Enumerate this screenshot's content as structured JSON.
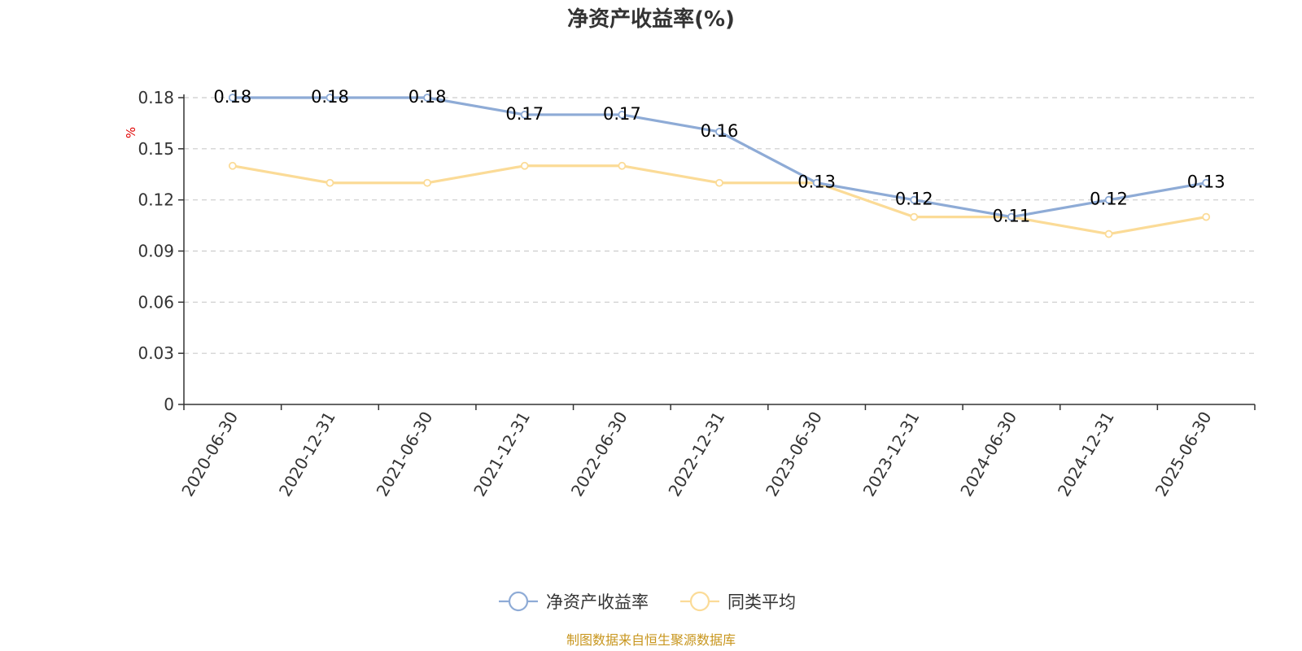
{
  "colors": {
    "series_main": "#8eabd6",
    "series_avg": "#fbdb97",
    "axis": "#333333",
    "grid": "#cccccc",
    "unit": "#e00000",
    "source": "#c8961e"
  },
  "chart_data": {
    "type": "line",
    "title": "净资产收益率(%)",
    "ylabel": "%",
    "ylim": [
      0,
      0.18
    ],
    "yticks": [
      "0",
      "0.03",
      "0.06",
      "0.09",
      "0.12",
      "0.15",
      "0.18"
    ],
    "grid": true,
    "legend_position": "bottom-center",
    "categories": [
      "2020-06-30",
      "2020-12-31",
      "2021-06-30",
      "2021-12-31",
      "2022-06-30",
      "2022-12-31",
      "2023-06-30",
      "2023-12-31",
      "2024-06-30",
      "2024-12-31",
      "2025-06-30"
    ],
    "series": [
      {
        "name": "净资产收益率",
        "values": [
          0.18,
          0.18,
          0.18,
          0.17,
          0.17,
          0.16,
          0.13,
          0.12,
          0.11,
          0.12,
          0.13
        ],
        "labels": [
          "0.18",
          "0.18",
          "0.18",
          "0.17",
          "0.17",
          "0.16",
          "0.13",
          "0.12",
          "0.11",
          "0.12",
          "0.13"
        ]
      },
      {
        "name": "同类平均",
        "values": [
          0.14,
          0.13,
          0.13,
          0.14,
          0.14,
          0.13,
          0.13,
          0.11,
          0.11,
          0.1,
          0.11
        ]
      }
    ]
  },
  "source_text": "制图数据来自恒生聚源数据库"
}
